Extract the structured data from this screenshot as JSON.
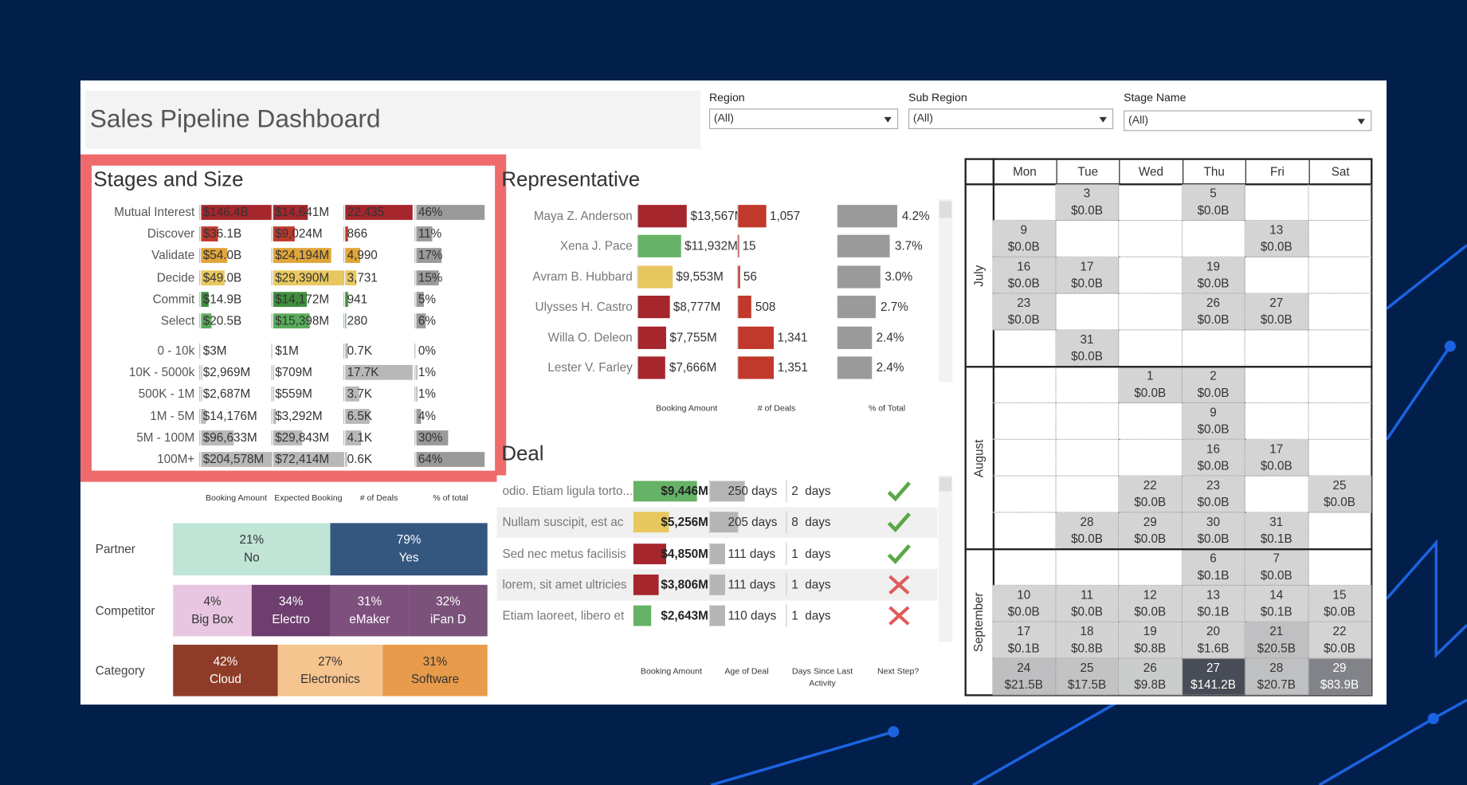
{
  "header": {
    "title": "Sales Pipeline Dashboard"
  },
  "filters": [
    {
      "label": "Region",
      "value": "(All)"
    },
    {
      "label": "Sub Region",
      "value": "(All)"
    },
    {
      "label": "Stage Name",
      "value": "(All)"
    }
  ],
  "stages_and_size": {
    "title": "Stages and Size",
    "columns": [
      "Booking Amount",
      "Expected Booking",
      "# of Deals",
      "% of total"
    ],
    "pct_color": "#9a9a9a",
    "stages": [
      {
        "name": "Mutual Interest",
        "color": "#a5262c",
        "booking": {
          "value": 146.4,
          "label": "$146.4B"
        },
        "expected": {
          "value": 14641,
          "label": "$14,641M"
        },
        "deals": {
          "value": 22435,
          "label": "22,435"
        },
        "pct": {
          "value": 46,
          "label": "46%"
        }
      },
      {
        "name": "Discover",
        "color": "#c0392b",
        "booking": {
          "value": 36.1,
          "label": "$36.1B"
        },
        "expected": {
          "value": 9024,
          "label": "$9,024M"
        },
        "deals": {
          "value": 866,
          "label": "866"
        },
        "pct": {
          "value": 11,
          "label": "11%"
        }
      },
      {
        "name": "Validate",
        "color": "#e0a53a",
        "booking": {
          "value": 54.0,
          "label": "$54.0B"
        },
        "expected": {
          "value": 24194,
          "label": "$24,194M"
        },
        "deals": {
          "value": 4990,
          "label": "4,990"
        },
        "pct": {
          "value": 17,
          "label": "17%"
        }
      },
      {
        "name": "Decide",
        "color": "#e8c75e",
        "booking": {
          "value": 49.0,
          "label": "$49.0B"
        },
        "expected": {
          "value": 29390,
          "label": "$29,390M"
        },
        "deals": {
          "value": 3731,
          "label": "3,731"
        },
        "pct": {
          "value": 15,
          "label": "15%"
        }
      },
      {
        "name": "Commit",
        "color": "#3f8f3f",
        "booking": {
          "value": 14.9,
          "label": "$14.9B"
        },
        "expected": {
          "value": 14172,
          "label": "$14,172M"
        },
        "deals": {
          "value": 941,
          "label": "941"
        },
        "pct": {
          "value": 5,
          "label": "5%"
        }
      },
      {
        "name": "Select",
        "color": "#5aac5a",
        "booking": {
          "value": 20.5,
          "label": "$20.5B"
        },
        "expected": {
          "value": 15398,
          "label": "$15,398M"
        },
        "deals": {
          "value": 280,
          "label": "280"
        },
        "pct": {
          "value": 6,
          "label": "6%"
        }
      }
    ],
    "sizes": [
      {
        "name": "0 - 10k",
        "color": "#b8b8b8",
        "booking": {
          "value": 3,
          "label": "$3M"
        },
        "expected": {
          "value": 1,
          "label": "$1M"
        },
        "deals": {
          "value": 700,
          "label": "0.7K"
        },
        "pct": {
          "value": 0,
          "label": "0%"
        }
      },
      {
        "name": "10K - 5000k",
        "color": "#b8b8b8",
        "booking": {
          "value": 2969,
          "label": "$2,969M"
        },
        "expected": {
          "value": 709,
          "label": "$709M"
        },
        "deals": {
          "value": 17700,
          "label": "17.7K"
        },
        "pct": {
          "value": 1,
          "label": "1%"
        }
      },
      {
        "name": "500K - 1M",
        "color": "#b8b8b8",
        "booking": {
          "value": 2687,
          "label": "$2,687M"
        },
        "expected": {
          "value": 559,
          "label": "$559M"
        },
        "deals": {
          "value": 3700,
          "label": "3.7K"
        },
        "pct": {
          "value": 1,
          "label": "1%"
        }
      },
      {
        "name": "1M - 5M",
        "color": "#b8b8b8",
        "booking": {
          "value": 14176,
          "label": "$14,176M"
        },
        "expected": {
          "value": 3292,
          "label": "$3,292M"
        },
        "deals": {
          "value": 6500,
          "label": "6.5K"
        },
        "pct": {
          "value": 4,
          "label": "4%"
        }
      },
      {
        "name": "5M - 100M",
        "color": "#b8b8b8",
        "booking": {
          "value": 96633,
          "label": "$96,633M"
        },
        "expected": {
          "value": 29843,
          "label": "$29,843M"
        },
        "deals": {
          "value": 4100,
          "label": "4.1K"
        },
        "pct": {
          "value": 30,
          "label": "30%"
        }
      },
      {
        "name": "100M+",
        "color": "#b8b8b8",
        "booking": {
          "value": 204578,
          "label": "$204,578M"
        },
        "expected": {
          "value": 72414,
          "label": "$72,414M"
        },
        "deals": {
          "value": 600,
          "label": "0.6K"
        },
        "pct": {
          "value": 64,
          "label": "64%"
        }
      }
    ]
  },
  "representative": {
    "title": "Representative",
    "columns": [
      "Booking Amount",
      "# of Deals",
      "% of Total"
    ],
    "deals_color": "#c0392b",
    "pct_color": "#9a9a9a",
    "rows": [
      {
        "name": "Maya Z. Anderson",
        "color": "#a5262c",
        "booking": {
          "value": 13567,
          "label": "$13,567M"
        },
        "deals": {
          "value": 1057,
          "label": "1,057"
        },
        "pct": {
          "value": 4.2,
          "label": "4.2%"
        }
      },
      {
        "name": "Xena J. Pace",
        "color": "#66b266",
        "booking": {
          "value": 11932,
          "label": "$11,932M"
        },
        "deals": {
          "value": 15,
          "label": "15"
        },
        "pct": {
          "value": 3.7,
          "label": "3.7%"
        }
      },
      {
        "name": "Avram B. Hubbard",
        "color": "#e8c75e",
        "booking": {
          "value": 9553,
          "label": "$9,553M"
        },
        "deals": {
          "value": 56,
          "label": "56"
        },
        "pct": {
          "value": 3.0,
          "label": "3.0%"
        }
      },
      {
        "name": "Ulysses H. Castro",
        "color": "#a5262c",
        "booking": {
          "value": 8777,
          "label": "$8,777M"
        },
        "deals": {
          "value": 508,
          "label": "508"
        },
        "pct": {
          "value": 2.7,
          "label": "2.7%"
        }
      },
      {
        "name": "Willa O. Deleon",
        "color": "#a5262c",
        "booking": {
          "value": 7755,
          "label": "$7,755M"
        },
        "deals": {
          "value": 1341,
          "label": "1,341"
        },
        "pct": {
          "value": 2.4,
          "label": "2.4%"
        }
      },
      {
        "name": "Lester V. Farley",
        "color": "#a5262c",
        "booking": {
          "value": 7666,
          "label": "$7,666M"
        },
        "deals": {
          "value": 1351,
          "label": "1,351"
        },
        "pct": {
          "value": 2.4,
          "label": "2.4%"
        }
      }
    ]
  },
  "deal": {
    "title": "Deal",
    "columns": [
      "Booking Amount",
      "Age of Deal",
      "Days Since Last Activity",
      "Next Step?"
    ],
    "age_color": "#b5b5b5",
    "rows": [
      {
        "name": "odio. Etiam ligula torto...",
        "color": "#66b266",
        "booking": {
          "value": 9446,
          "label": "$9,446M"
        },
        "age": {
          "value": 250,
          "label": "250 days"
        },
        "days": {
          "value": 2,
          "label": "2  days"
        },
        "next_step": true
      },
      {
        "name": "Nullam suscipit, est ac",
        "color": "#e8c75e",
        "booking": {
          "value": 5256,
          "label": "$5,256M"
        },
        "age": {
          "value": 205,
          "label": "205 days"
        },
        "days": {
          "value": 8,
          "label": "8  days"
        },
        "next_step": true
      },
      {
        "name": "Sed nec metus facilisis",
        "color": "#a5262c",
        "booking": {
          "value": 4850,
          "label": "$4,850M"
        },
        "age": {
          "value": 111,
          "label": "111 days"
        },
        "days": {
          "value": 1,
          "label": "1  days"
        },
        "next_step": true
      },
      {
        "name": "lorem, sit amet ultricies",
        "color": "#a5262c",
        "booking": {
          "value": 3806,
          "label": "$3,806M"
        },
        "age": {
          "value": 111,
          "label": "111 days"
        },
        "days": {
          "value": 1,
          "label": "1  days"
        },
        "next_step": false
      },
      {
        "name": "Etiam laoreet, libero et",
        "color": "#66b266",
        "booking": {
          "value": 2643,
          "label": "$2,643M"
        },
        "age": {
          "value": 110,
          "label": "110 days"
        },
        "days": {
          "value": 1,
          "label": "1  days"
        },
        "next_step": false
      }
    ]
  },
  "breakdowns": [
    {
      "label": "Partner",
      "segments": [
        {
          "pct": {
            "value": 21,
            "label": "21%"
          },
          "name": "No",
          "color": "#c0e4d6",
          "text_color": "#333333"
        },
        {
          "pct": {
            "value": 79,
            "label": "79%"
          },
          "name": "Yes",
          "color": "#34577f",
          "text_color": "#ffffff"
        }
      ]
    },
    {
      "label": "Competitor",
      "segments": [
        {
          "pct": {
            "value": 4,
            "label": "4%"
          },
          "name": "Big Box",
          "color": "#e8c6e1",
          "text_color": "#333333"
        },
        {
          "pct": {
            "value": 34,
            "label": "34%"
          },
          "name": "Electro",
          "color": "#6e3e6e",
          "text_color": "#ffffff"
        },
        {
          "pct": {
            "value": 31,
            "label": "31%"
          },
          "name": "eMaker",
          "color": "#7e507e",
          "text_color": "#ffffff"
        },
        {
          "pct": {
            "value": 32,
            "label": "32%"
          },
          "name": "iFan D",
          "color": "#7a527a",
          "text_color": "#ffffff"
        }
      ]
    },
    {
      "label": "Category",
      "segments": [
        {
          "pct": {
            "value": 42,
            "label": "42%"
          },
          "name": "Cloud",
          "color": "#8e3c28",
          "text_color": "#ffffff"
        },
        {
          "pct": {
            "value": 27,
            "label": "27%"
          },
          "name": "Electronics",
          "color": "#f6c48e",
          "text_color": "#333333"
        },
        {
          "pct": {
            "value": 31,
            "label": "31%"
          },
          "name": "Software",
          "color": "#e89b4a",
          "text_color": "#333333"
        }
      ]
    }
  ],
  "calendar": {
    "weekdays": [
      "Mon",
      "Tue",
      "Wed",
      "Thu",
      "Fri",
      "Sat"
    ],
    "months": [
      {
        "name": "July",
        "weeks": [
          [
            null,
            {
              "day": 3,
              "value": 0.0,
              "label": "$0.0B"
            },
            null,
            {
              "day": 5,
              "value": 0.0,
              "label": "$0.0B"
            },
            null,
            null
          ],
          [
            {
              "day": 9,
              "value": 0.0,
              "label": "$0.0B"
            },
            null,
            null,
            null,
            {
              "day": 13,
              "value": 0.0,
              "label": "$0.0B"
            },
            null
          ],
          [
            {
              "day": 16,
              "value": 0.0,
              "label": "$0.0B"
            },
            {
              "day": 17,
              "value": 0.0,
              "label": "$0.0B"
            },
            null,
            {
              "day": 19,
              "value": 0.0,
              "label": "$0.0B"
            },
            null,
            null
          ],
          [
            {
              "day": 23,
              "value": 0.0,
              "label": "$0.0B"
            },
            null,
            null,
            {
              "day": 26,
              "value": 0.0,
              "label": "$0.0B"
            },
            {
              "day": 27,
              "value": 0.0,
              "label": "$0.0B"
            },
            null
          ],
          [
            null,
            {
              "day": 31,
              "value": 0.0,
              "label": "$0.0B"
            },
            null,
            null,
            null,
            null
          ]
        ]
      },
      {
        "name": "August",
        "weeks": [
          [
            null,
            null,
            {
              "day": 1,
              "value": 0.0,
              "label": "$0.0B"
            },
            {
              "day": 2,
              "value": 0.0,
              "label": "$0.0B"
            },
            null,
            null
          ],
          [
            null,
            null,
            null,
            {
              "day": 9,
              "value": 0.0,
              "label": "$0.0B"
            },
            null,
            null
          ],
          [
            null,
            null,
            null,
            {
              "day": 16,
              "value": 0.0,
              "label": "$0.0B"
            },
            {
              "day": 17,
              "value": 0.0,
              "label": "$0.0B"
            },
            null
          ],
          [
            null,
            null,
            {
              "day": 22,
              "value": 0.0,
              "label": "$0.0B"
            },
            {
              "day": 23,
              "value": 0.0,
              "label": "$0.0B"
            },
            null,
            {
              "day": 25,
              "value": 0.0,
              "label": "$0.0B"
            }
          ],
          [
            null,
            {
              "day": 28,
              "value": 0.0,
              "label": "$0.0B"
            },
            {
              "day": 29,
              "value": 0.0,
              "label": "$0.0B"
            },
            {
              "day": 30,
              "value": 0.0,
              "label": "$0.0B"
            },
            {
              "day": 31,
              "value": 0.1,
              "label": "$0.1B"
            },
            null
          ]
        ]
      },
      {
        "name": "September",
        "weeks": [
          [
            null,
            null,
            null,
            {
              "day": 6,
              "value": 0.1,
              "label": "$0.1B"
            },
            {
              "day": 7,
              "value": 0.0,
              "label": "$0.0B"
            },
            null
          ],
          [
            {
              "day": 10,
              "value": 0.0,
              "label": "$0.0B"
            },
            {
              "day": 11,
              "value": 0.0,
              "label": "$0.0B"
            },
            {
              "day": 12,
              "value": 0.0,
              "label": "$0.0B"
            },
            {
              "day": 13,
              "value": 0.1,
              "label": "$0.1B"
            },
            {
              "day": 14,
              "value": 0.1,
              "label": "$0.1B"
            },
            {
              "day": 15,
              "value": 0.0,
              "label": "$0.0B"
            }
          ],
          [
            {
              "day": 17,
              "value": 0.1,
              "label": "$0.1B"
            },
            {
              "day": 18,
              "value": 0.8,
              "label": "$0.8B"
            },
            {
              "day": 19,
              "value": 0.8,
              "label": "$0.8B"
            },
            {
              "day": 20,
              "value": 1.6,
              "label": "$1.6B"
            },
            {
              "day": 21,
              "value": 20.5,
              "label": "$20.5B"
            },
            {
              "day": 22,
              "value": 0.0,
              "label": "$0.0B"
            }
          ],
          [
            {
              "day": 24,
              "value": 21.5,
              "label": "$21.5B"
            },
            {
              "day": 25,
              "value": 17.5,
              "label": "$17.5B"
            },
            {
              "day": 26,
              "value": 9.8,
              "label": "$9.8B"
            },
            {
              "day": 27,
              "value": 141.2,
              "label": "$141.2B"
            },
            {
              "day": 28,
              "value": 20.7,
              "label": "$20.7B"
            },
            {
              "day": 29,
              "value": 83.9,
              "label": "$83.9B"
            }
          ]
        ]
      }
    ]
  }
}
